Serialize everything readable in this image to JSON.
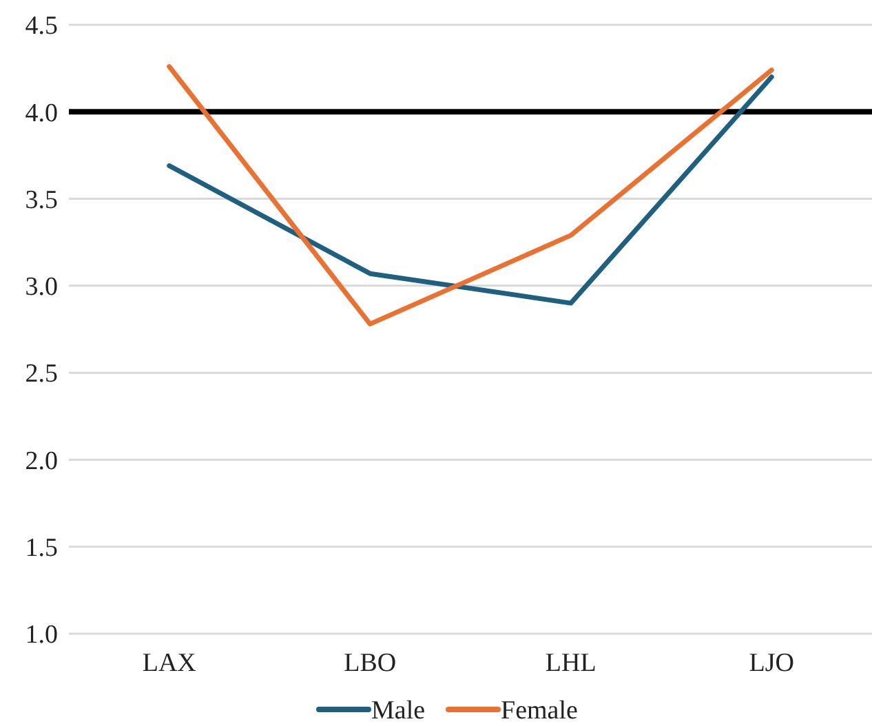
{
  "chart_data": {
    "type": "line",
    "categories": [
      "LAX",
      "LBO",
      "LHL",
      "LJO"
    ],
    "series": [
      {
        "name": "Male",
        "color": "#1f5f80",
        "values": [
          3.69,
          3.07,
          2.9,
          4.2
        ]
      },
      {
        "name": "Female",
        "color": "#e97132",
        "values": [
          4.26,
          2.78,
          3.29,
          4.24
        ]
      }
    ],
    "ylim": [
      1.0,
      4.5
    ],
    "yticks": [
      {
        "value": 1,
        "label": "1.0"
      },
      {
        "value": 1.5,
        "label": "1.5"
      },
      {
        "value": 2,
        "label": "2.0"
      },
      {
        "value": 2.5,
        "label": "2.5"
      },
      {
        "value": 3,
        "label": "3.0"
      },
      {
        "value": 3.5,
        "label": "3.5"
      },
      {
        "value": 4,
        "label": "4.0"
      },
      {
        "value": 4.5,
        "label": "4.5"
      }
    ],
    "ref_lines": [
      {
        "axis": "y",
        "value": 4,
        "color": "#000000"
      }
    ],
    "grid": "y",
    "legend": "bottom",
    "marker": "none",
    "line_style": "solid"
  }
}
